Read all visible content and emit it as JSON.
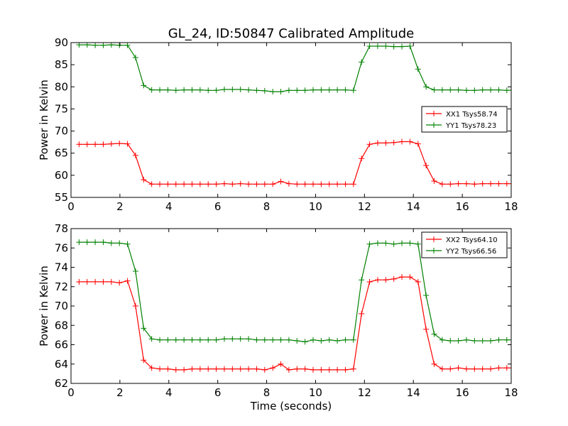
{
  "chart_data": {
    "title": "GL_24, ID:50847 Calibrated Amplitude",
    "xlabel": "Time (seconds)",
    "subplots": [
      {
        "type": "line",
        "ylabel": "Power in Kelvin",
        "xlim": [
          0,
          18
        ],
        "ylim": [
          55,
          90
        ],
        "xticks": [
          "0",
          "2",
          "4",
          "6",
          "8",
          "10",
          "12",
          "14",
          "16",
          "18"
        ],
        "yticks": [
          "55",
          "60",
          "65",
          "70",
          "75",
          "80",
          "85",
          "90"
        ],
        "legend_position": "center-right",
        "x": [
          0.33,
          0.66,
          0.99,
          1.32,
          1.65,
          1.98,
          2.31,
          2.64,
          2.97,
          3.3,
          3.63,
          3.96,
          4.29,
          4.62,
          4.95,
          5.28,
          5.61,
          5.94,
          6.27,
          6.6,
          6.93,
          7.26,
          7.59,
          7.92,
          8.25,
          8.58,
          8.91,
          9.24,
          9.57,
          9.9,
          10.23,
          10.56,
          10.89,
          11.22,
          11.55,
          11.88,
          12.21,
          12.54,
          12.87,
          13.2,
          13.53,
          13.86,
          14.19,
          14.52,
          14.85,
          15.18,
          15.51,
          15.84,
          16.17,
          16.5,
          16.83,
          17.16,
          17.49,
          17.82,
          18.15
        ],
        "series": [
          {
            "name": "XX1 Tsys58.74",
            "color": "#ff0000",
            "values": [
              67.0,
              67.0,
              67.0,
              67.0,
              67.1,
              67.2,
              67.1,
              64.5,
              59.0,
              58.0,
              58.0,
              58.0,
              58.0,
              58.0,
              58.0,
              58.0,
              58.0,
              58.0,
              58.1,
              58.0,
              58.1,
              58.0,
              58.0,
              58.0,
              58.0,
              58.6,
              58.1,
              58.0,
              58.0,
              58.0,
              58.0,
              58.0,
              58.0,
              58.0,
              58.0,
              63.8,
              67.0,
              67.3,
              67.3,
              67.4,
              67.6,
              67.6,
              67.1,
              62.2,
              58.7,
              58.0,
              58.0,
              58.1,
              58.1,
              58.0,
              58.1,
              58.1,
              58.1,
              58.1,
              58.1
            ]
          },
          {
            "name": "YY1 Tsys78.23",
            "color": "#008000",
            "values": [
              89.5,
              89.5,
              89.4,
              89.4,
              89.5,
              89.4,
              89.4,
              86.6,
              80.3,
              79.3,
              79.3,
              79.3,
              79.2,
              79.3,
              79.3,
              79.3,
              79.2,
              79.2,
              79.4,
              79.4,
              79.4,
              79.3,
              79.2,
              79.1,
              78.9,
              78.9,
              79.2,
              79.2,
              79.2,
              79.3,
              79.3,
              79.3,
              79.3,
              79.3,
              79.2,
              85.6,
              89.2,
              89.2,
              89.2,
              89.1,
              89.1,
              89.2,
              84.0,
              80.0,
              79.3,
              79.3,
              79.3,
              79.3,
              79.2,
              79.2,
              79.3,
              79.3,
              79.3,
              79.2,
              79.3
            ]
          }
        ]
      },
      {
        "type": "line",
        "ylabel": "Power in Kelvin",
        "xlim": [
          0,
          18
        ],
        "ylim": [
          62,
          78
        ],
        "xticks": [
          "0",
          "2",
          "4",
          "6",
          "8",
          "10",
          "12",
          "14",
          "16",
          "18"
        ],
        "yticks": [
          "62",
          "64",
          "66",
          "68",
          "70",
          "72",
          "74",
          "76",
          "78"
        ],
        "legend_position": "top-right",
        "x": [
          0.33,
          0.66,
          0.99,
          1.32,
          1.65,
          1.98,
          2.31,
          2.64,
          2.97,
          3.3,
          3.63,
          3.96,
          4.29,
          4.62,
          4.95,
          5.28,
          5.61,
          5.94,
          6.27,
          6.6,
          6.93,
          7.26,
          7.59,
          7.92,
          8.25,
          8.58,
          8.91,
          9.24,
          9.57,
          9.9,
          10.23,
          10.56,
          10.89,
          11.22,
          11.55,
          11.88,
          12.21,
          12.54,
          12.87,
          13.2,
          13.53,
          13.86,
          14.19,
          14.52,
          14.85,
          15.18,
          15.51,
          15.84,
          16.17,
          16.5,
          16.83,
          17.16,
          17.49,
          17.82,
          18.15
        ],
        "series": [
          {
            "name": "XX2 Tsys64.10",
            "color": "#ff0000",
            "values": [
              72.5,
              72.5,
              72.5,
              72.5,
              72.5,
              72.4,
              72.6,
              70.0,
              64.4,
              63.6,
              63.5,
              63.5,
              63.4,
              63.4,
              63.5,
              63.5,
              63.5,
              63.5,
              63.5,
              63.5,
              63.5,
              63.5,
              63.5,
              63.4,
              63.6,
              64.0,
              63.4,
              63.5,
              63.5,
              63.4,
              63.4,
              63.4,
              63.4,
              63.4,
              63.5,
              69.2,
              72.5,
              72.7,
              72.7,
              72.8,
              73.0,
              73.0,
              72.5,
              67.6,
              64.0,
              63.5,
              63.5,
              63.6,
              63.5,
              63.5,
              63.5,
              63.5,
              63.6,
              63.6,
              63.6
            ]
          },
          {
            "name": "YY2 Tsys66.56",
            "color": "#008000",
            "values": [
              76.6,
              76.6,
              76.6,
              76.6,
              76.5,
              76.5,
              76.4,
              73.6,
              67.7,
              66.6,
              66.5,
              66.5,
              66.5,
              66.5,
              66.5,
              66.5,
              66.5,
              66.5,
              66.6,
              66.6,
              66.6,
              66.6,
              66.5,
              66.5,
              66.5,
              66.5,
              66.5,
              66.4,
              66.3,
              66.5,
              66.4,
              66.5,
              66.4,
              66.5,
              66.5,
              72.7,
              76.4,
              76.5,
              76.5,
              76.4,
              76.5,
              76.5,
              76.4,
              71.1,
              67.1,
              66.5,
              66.4,
              66.4,
              66.5,
              66.4,
              66.4,
              66.4,
              66.5,
              66.5,
              66.5
            ]
          }
        ]
      }
    ]
  }
}
